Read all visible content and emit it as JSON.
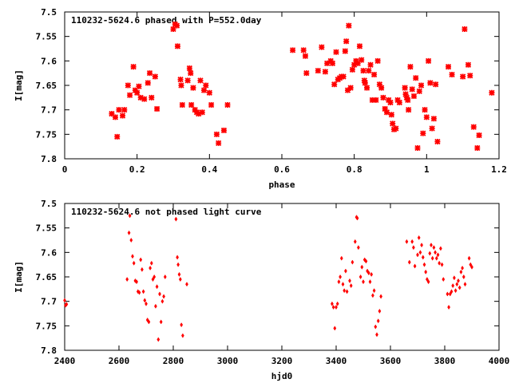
{
  "colors": {
    "points": "#ff0000",
    "axes": "#000000",
    "background": "#ffffff"
  },
  "chart_data": [
    {
      "type": "scatter",
      "marker": "cross",
      "title": "110232-5624.6 phased with P=552.0day",
      "xlabel": "phase",
      "ylabel": "I[mag]",
      "xlim": [
        0,
        1.2
      ],
      "ylim": [
        7.8,
        7.5
      ],
      "y_inverted": true,
      "grid": false,
      "x_ticks": [
        "0",
        "0.2",
        "0.4",
        "0.6",
        "0.8",
        "1",
        "1.2"
      ],
      "y_ticks": [
        "7.5",
        "7.55",
        "7.6",
        "7.65",
        "7.7",
        "7.75",
        "7.8"
      ],
      "points": [
        [
          0.13,
          7.708
        ],
        [
          0.14,
          7.715
        ],
        [
          0.145,
          7.755
        ],
        [
          0.15,
          7.7
        ],
        [
          0.16,
          7.712
        ],
        [
          0.165,
          7.7
        ],
        [
          0.175,
          7.65
        ],
        [
          0.18,
          7.67
        ],
        [
          0.19,
          7.612
        ],
        [
          0.195,
          7.66
        ],
        [
          0.2,
          7.665
        ],
        [
          0.205,
          7.652
        ],
        [
          0.21,
          7.675
        ],
        [
          0.22,
          7.678
        ],
        [
          0.23,
          7.645
        ],
        [
          0.235,
          7.625
        ],
        [
          0.24,
          7.675
        ],
        [
          0.25,
          7.632
        ],
        [
          0.255,
          7.698
        ],
        [
          0.3,
          7.535
        ],
        [
          0.305,
          7.525
        ],
        [
          0.31,
          7.528
        ],
        [
          0.312,
          7.57
        ],
        [
          0.32,
          7.638
        ],
        [
          0.322,
          7.65
        ],
        [
          0.325,
          7.69
        ],
        [
          0.34,
          7.64
        ],
        [
          0.345,
          7.615
        ],
        [
          0.348,
          7.625
        ],
        [
          0.35,
          7.69
        ],
        [
          0.355,
          7.655
        ],
        [
          0.36,
          7.7
        ],
        [
          0.365,
          7.705
        ],
        [
          0.37,
          7.708
        ],
        [
          0.375,
          7.64
        ],
        [
          0.38,
          7.705
        ],
        [
          0.385,
          7.66
        ],
        [
          0.39,
          7.65
        ],
        [
          0.4,
          7.665
        ],
        [
          0.405,
          7.69
        ],
        [
          0.42,
          7.75
        ],
        [
          0.425,
          7.768
        ],
        [
          0.44,
          7.742
        ],
        [
          0.45,
          7.69
        ],
        [
          0.63,
          7.578
        ],
        [
          0.66,
          7.578
        ],
        [
          0.665,
          7.59
        ],
        [
          0.668,
          7.625
        ],
        [
          0.7,
          7.62
        ],
        [
          0.71,
          7.572
        ],
        [
          0.72,
          7.622
        ],
        [
          0.725,
          7.605
        ],
        [
          0.735,
          7.6
        ],
        [
          0.74,
          7.605
        ],
        [
          0.745,
          7.648
        ],
        [
          0.75,
          7.582
        ],
        [
          0.755,
          7.638
        ],
        [
          0.76,
          7.635
        ],
        [
          0.765,
          7.632
        ],
        [
          0.77,
          7.632
        ],
        [
          0.775,
          7.58
        ],
        [
          0.778,
          7.56
        ],
        [
          0.782,
          7.66
        ],
        [
          0.785,
          7.528
        ],
        [
          0.79,
          7.655
        ],
        [
          0.795,
          7.618
        ],
        [
          0.8,
          7.608
        ],
        [
          0.805,
          7.6
        ],
        [
          0.81,
          7.605
        ],
        [
          0.815,
          7.57
        ],
        [
          0.82,
          7.598
        ],
        [
          0.825,
          7.62
        ],
        [
          0.828,
          7.64
        ],
        [
          0.83,
          7.645
        ],
        [
          0.835,
          7.655
        ],
        [
          0.84,
          7.62
        ],
        [
          0.845,
          7.608
        ],
        [
          0.85,
          7.68
        ],
        [
          0.855,
          7.628
        ],
        [
          0.86,
          7.68
        ],
        [
          0.865,
          7.6
        ],
        [
          0.87,
          7.648
        ],
        [
          0.875,
          7.655
        ],
        [
          0.88,
          7.675
        ],
        [
          0.885,
          7.698
        ],
        [
          0.89,
          7.705
        ],
        [
          0.895,
          7.68
        ],
        [
          0.9,
          7.685
        ],
        [
          0.903,
          7.71
        ],
        [
          0.906,
          7.728
        ],
        [
          0.91,
          7.74
        ],
        [
          0.915,
          7.738
        ],
        [
          0.92,
          7.68
        ],
        [
          0.925,
          7.685
        ],
        [
          0.94,
          7.655
        ],
        [
          0.942,
          7.668
        ],
        [
          0.945,
          7.675
        ],
        [
          0.948,
          7.68
        ],
        [
          0.95,
          7.7
        ],
        [
          0.955,
          7.612
        ],
        [
          0.96,
          7.658
        ],
        [
          0.965,
          7.672
        ],
        [
          0.97,
          7.635
        ],
        [
          0.975,
          7.778
        ],
        [
          0.98,
          7.662
        ],
        [
          0.985,
          7.65
        ],
        [
          0.99,
          7.748
        ],
        [
          0.995,
          7.7
        ],
        [
          1.0,
          7.715
        ],
        [
          1.005,
          7.6
        ],
        [
          1.01,
          7.645
        ],
        [
          1.015,
          7.738
        ],
        [
          1.02,
          7.718
        ],
        [
          1.025,
          7.648
        ],
        [
          1.03,
          7.765
        ],
        [
          1.06,
          7.612
        ],
        [
          1.07,
          7.628
        ],
        [
          1.1,
          7.632
        ],
        [
          1.105,
          7.535
        ],
        [
          1.115,
          7.608
        ],
        [
          1.12,
          7.63
        ],
        [
          1.13,
          7.735
        ],
        [
          1.14,
          7.778
        ],
        [
          1.145,
          7.752
        ],
        [
          1.18,
          7.665
        ]
      ]
    },
    {
      "type": "scatter",
      "marker": "diamond",
      "title": "110232-5624.6 not phased light curve",
      "xlabel": "hjd0",
      "ylabel": "I[mag]",
      "xlim": [
        2400,
        4000
      ],
      "ylim": [
        7.8,
        7.5
      ],
      "y_inverted": true,
      "grid": false,
      "x_ticks": [
        "2400",
        "2600",
        "2800",
        "3000",
        "3200",
        "3400",
        "3600",
        "3800",
        "4000"
      ],
      "y_ticks": [
        "7.5",
        "7.55",
        "7.6",
        "7.65",
        "7.7",
        "7.75",
        "7.8"
      ],
      "points": [
        [
          2400,
          7.698
        ],
        [
          2403,
          7.708
        ],
        [
          2407,
          7.706
        ],
        [
          2630,
          7.655
        ],
        [
          2637,
          7.56
        ],
        [
          2640,
          7.525
        ],
        [
          2645,
          7.575
        ],
        [
          2650,
          7.608
        ],
        [
          2655,
          7.622
        ],
        [
          2660,
          7.658
        ],
        [
          2665,
          7.66
        ],
        [
          2670,
          7.68
        ],
        [
          2675,
          7.682
        ],
        [
          2680,
          7.615
        ],
        [
          2685,
          7.635
        ],
        [
          2690,
          7.68
        ],
        [
          2695,
          7.698
        ],
        [
          2700,
          7.705
        ],
        [
          2705,
          7.738
        ],
        [
          2710,
          7.742
        ],
        [
          2715,
          7.632
        ],
        [
          2720,
          7.622
        ],
        [
          2725,
          7.655
        ],
        [
          2730,
          7.65
        ],
        [
          2735,
          7.71
        ],
        [
          2740,
          7.67
        ],
        [
          2745,
          7.778
        ],
        [
          2750,
          7.685
        ],
        [
          2755,
          7.742
        ],
        [
          2760,
          7.7
        ],
        [
          2765,
          7.69
        ],
        [
          2770,
          7.65
        ],
        [
          2810,
          7.532
        ],
        [
          2815,
          7.61
        ],
        [
          2818,
          7.625
        ],
        [
          2822,
          7.645
        ],
        [
          2826,
          7.655
        ],
        [
          2830,
          7.748
        ],
        [
          2835,
          7.77
        ],
        [
          2850,
          7.665
        ],
        [
          3385,
          7.705
        ],
        [
          3390,
          7.712
        ],
        [
          3395,
          7.755
        ],
        [
          3400,
          7.712
        ],
        [
          3405,
          7.705
        ],
        [
          3410,
          7.66
        ],
        [
          3415,
          7.65
        ],
        [
          3420,
          7.612
        ],
        [
          3425,
          7.665
        ],
        [
          3430,
          7.678
        ],
        [
          3435,
          7.638
        ],
        [
          3440,
          7.68
        ],
        [
          3450,
          7.658
        ],
        [
          3455,
          7.668
        ],
        [
          3460,
          7.62
        ],
        [
          3470,
          7.578
        ],
        [
          3475,
          7.528
        ],
        [
          3478,
          7.53
        ],
        [
          3482,
          7.59
        ],
        [
          3490,
          7.65
        ],
        [
          3495,
          7.63
        ],
        [
          3500,
          7.66
        ],
        [
          3505,
          7.615
        ],
        [
          3510,
          7.618
        ],
        [
          3515,
          7.638
        ],
        [
          3520,
          7.642
        ],
        [
          3525,
          7.66
        ],
        [
          3530,
          7.645
        ],
        [
          3535,
          7.688
        ],
        [
          3540,
          7.678
        ],
        [
          3545,
          7.752
        ],
        [
          3550,
          7.768
        ],
        [
          3555,
          7.74
        ],
        [
          3560,
          7.72
        ],
        [
          3565,
          7.69
        ],
        [
          3660,
          7.578
        ],
        [
          3670,
          7.62
        ],
        [
          3680,
          7.578
        ],
        [
          3685,
          7.59
        ],
        [
          3690,
          7.628
        ],
        [
          3700,
          7.605
        ],
        [
          3705,
          7.57
        ],
        [
          3710,
          7.6
        ],
        [
          3715,
          7.585
        ],
        [
          3720,
          7.61
        ],
        [
          3725,
          7.625
        ],
        [
          3730,
          7.64
        ],
        [
          3735,
          7.655
        ],
        [
          3740,
          7.66
        ],
        [
          3745,
          7.602
        ],
        [
          3750,
          7.585
        ],
        [
          3755,
          7.612
        ],
        [
          3760,
          7.59
        ],
        [
          3765,
          7.6
        ],
        [
          3770,
          7.612
        ],
        [
          3775,
          7.605
        ],
        [
          3780,
          7.622
        ],
        [
          3785,
          7.592
        ],
        [
          3790,
          7.625
        ],
        [
          3795,
          7.655
        ],
        [
          3810,
          7.685
        ],
        [
          3815,
          7.712
        ],
        [
          3820,
          7.685
        ],
        [
          3825,
          7.68
        ],
        [
          3830,
          7.668
        ],
        [
          3835,
          7.652
        ],
        [
          3840,
          7.678
        ],
        [
          3845,
          7.665
        ],
        [
          3850,
          7.658
        ],
        [
          3855,
          7.672
        ],
        [
          3860,
          7.64
        ],
        [
          3865,
          7.632
        ],
        [
          3870,
          7.65
        ],
        [
          3875,
          7.665
        ],
        [
          3890,
          7.612
        ],
        [
          3895,
          7.625
        ],
        [
          3900,
          7.63
        ]
      ]
    }
  ]
}
